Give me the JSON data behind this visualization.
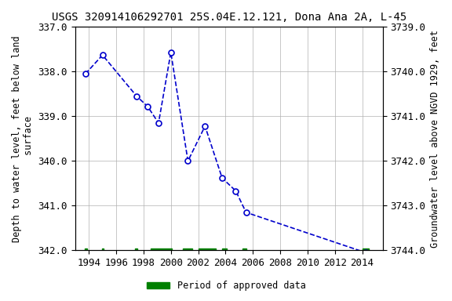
{
  "title": "USGS 320914106292701 25S.04E.12.121, Dona Ana 2A, L-45",
  "ylabel_left": "Depth to water level, feet below land\n surface",
  "ylabel_right": "Groundwater level above NGVD 1929, feet",
  "ylim_left": [
    337.0,
    342.0
  ],
  "ylim_right": [
    3744.0,
    3739.0
  ],
  "xlim": [
    1993.0,
    2015.5
  ],
  "xticks": [
    1994,
    1996,
    1998,
    2000,
    2002,
    2004,
    2006,
    2008,
    2010,
    2012,
    2014
  ],
  "yticks_left": [
    337.0,
    338.0,
    339.0,
    340.0,
    341.0,
    342.0
  ],
  "yticks_right": [
    3744.0,
    3743.0,
    3742.0,
    3741.0,
    3740.0,
    3739.0
  ],
  "data_x": [
    1993.75,
    1995.0,
    1997.5,
    1998.3,
    1999.1,
    2000.0,
    2001.25,
    2002.5,
    2003.75,
    2004.75,
    2005.5,
    2014.25
  ],
  "data_y": [
    338.05,
    337.63,
    338.55,
    338.78,
    339.15,
    337.57,
    340.0,
    339.22,
    340.38,
    340.67,
    341.15,
    342.05
  ],
  "line_color": "#0000CC",
  "marker_color": "#0000CC",
  "marker_face": "white",
  "line_style": "--",
  "marker_style": "o",
  "marker_size": 5,
  "marker_linewidth": 1.2,
  "line_width": 1.2,
  "approved_bars": [
    {
      "start": 1993.7,
      "end": 1993.85
    },
    {
      "start": 1994.95,
      "end": 1995.1
    },
    {
      "start": 1997.35,
      "end": 1997.55
    },
    {
      "start": 1998.5,
      "end": 2000.1
    },
    {
      "start": 2000.9,
      "end": 2001.55
    },
    {
      "start": 2002.0,
      "end": 2003.3
    },
    {
      "start": 2003.75,
      "end": 2004.1
    },
    {
      "start": 2005.25,
      "end": 2005.55
    },
    {
      "start": 2014.0,
      "end": 2014.5
    }
  ],
  "bar_color": "#008000",
  "bar_y": 342.0,
  "bar_height": 0.07,
  "legend_label": "Period of approved data",
  "background_color": "#ffffff",
  "grid_color": "#b0b0b0",
  "title_fontsize": 10,
  "label_fontsize": 8.5,
  "tick_fontsize": 9,
  "font_family": "monospace"
}
